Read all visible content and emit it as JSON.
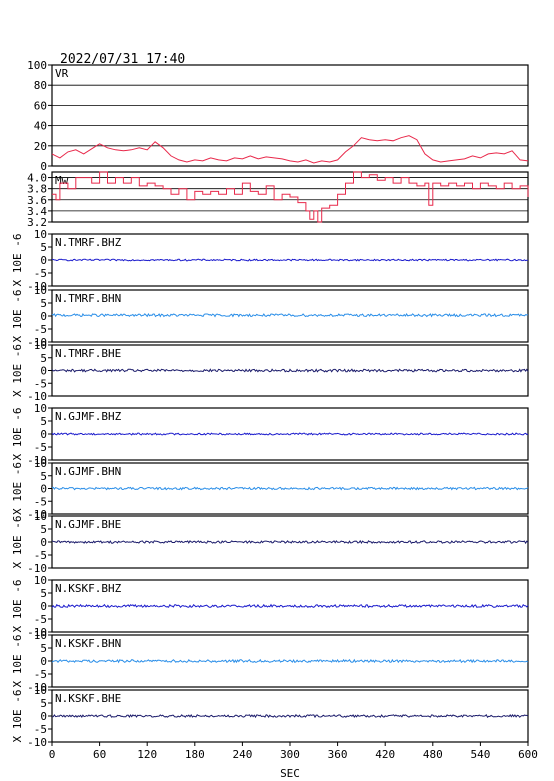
{
  "header": {
    "timestamp": "2022/07/31  17:40"
  },
  "chart_data": {
    "type": "line",
    "x_axis": {
      "xlabel": "SEC",
      "xlim": [
        0,
        600
      ],
      "ticks": [
        0,
        60,
        120,
        180,
        240,
        300,
        360,
        420,
        480,
        540,
        600
      ]
    },
    "shared_ylabel": "X 10E -6",
    "panels": [
      {
        "id": "vr",
        "label": "VR",
        "color": "#e8284a",
        "ylim": [
          0,
          100
        ],
        "yticks": [
          0,
          20,
          40,
          60,
          80,
          100
        ],
        "ytick_labels": [
          "0",
          "20",
          "40",
          "60",
          "80",
          "100"
        ],
        "grid": true,
        "ylabel": "",
        "points": [
          [
            0,
            12
          ],
          [
            10,
            8
          ],
          [
            20,
            14
          ],
          [
            30,
            16
          ],
          [
            40,
            12
          ],
          [
            50,
            17
          ],
          [
            60,
            22
          ],
          [
            70,
            18
          ],
          [
            80,
            16
          ],
          [
            90,
            15
          ],
          [
            100,
            16
          ],
          [
            110,
            18
          ],
          [
            120,
            16
          ],
          [
            130,
            24
          ],
          [
            140,
            18
          ],
          [
            150,
            10
          ],
          [
            160,
            6
          ],
          [
            170,
            4
          ],
          [
            180,
            6
          ],
          [
            190,
            5
          ],
          [
            200,
            8
          ],
          [
            210,
            6
          ],
          [
            220,
            5
          ],
          [
            230,
            8
          ],
          [
            240,
            7
          ],
          [
            250,
            10
          ],
          [
            260,
            7
          ],
          [
            270,
            9
          ],
          [
            280,
            8
          ],
          [
            290,
            7
          ],
          [
            300,
            5
          ],
          [
            310,
            4
          ],
          [
            320,
            6
          ],
          [
            330,
            3
          ],
          [
            340,
            5
          ],
          [
            350,
            4
          ],
          [
            360,
            6
          ],
          [
            370,
            14
          ],
          [
            380,
            20
          ],
          [
            390,
            28
          ],
          [
            400,
            26
          ],
          [
            410,
            25
          ],
          [
            420,
            26
          ],
          [
            430,
            25
          ],
          [
            440,
            28
          ],
          [
            450,
            30
          ],
          [
            460,
            26
          ],
          [
            470,
            12
          ],
          [
            480,
            6
          ],
          [
            490,
            4
          ],
          [
            500,
            5
          ],
          [
            510,
            6
          ],
          [
            520,
            7
          ],
          [
            530,
            10
          ],
          [
            540,
            8
          ],
          [
            550,
            12
          ],
          [
            560,
            13
          ],
          [
            570,
            12
          ],
          [
            580,
            15
          ],
          [
            590,
            6
          ],
          [
            600,
            5
          ]
        ]
      },
      {
        "id": "mw",
        "label": "Mw",
        "color": "#e8284a",
        "ylim": [
          3.2,
          4.1
        ],
        "yticks": [
          3.2,
          3.4,
          3.6,
          3.8,
          4.0
        ],
        "ytick_labels": [
          "3.2",
          "3.4",
          "3.6",
          "3.8",
          "4.0"
        ],
        "grid": true,
        "ylabel": "",
        "points": [
          [
            0,
            3.7
          ],
          [
            5,
            3.6
          ],
          [
            10,
            3.9
          ],
          [
            20,
            3.8
          ],
          [
            30,
            4.0
          ],
          [
            40,
            4.0
          ],
          [
            50,
            3.9
          ],
          [
            60,
            4.1
          ],
          [
            70,
            3.9
          ],
          [
            80,
            4.0
          ],
          [
            90,
            3.9
          ],
          [
            100,
            4.0
          ],
          [
            110,
            3.85
          ],
          [
            120,
            3.9
          ],
          [
            130,
            3.85
          ],
          [
            140,
            3.8
          ],
          [
            150,
            3.7
          ],
          [
            160,
            3.8
          ],
          [
            170,
            3.6
          ],
          [
            180,
            3.75
          ],
          [
            190,
            3.7
          ],
          [
            200,
            3.75
          ],
          [
            210,
            3.7
          ],
          [
            220,
            3.8
          ],
          [
            230,
            3.7
          ],
          [
            240,
            3.9
          ],
          [
            250,
            3.75
          ],
          [
            260,
            3.7
          ],
          [
            270,
            3.85
          ],
          [
            280,
            3.6
          ],
          [
            290,
            3.7
          ],
          [
            300,
            3.65
          ],
          [
            310,
            3.55
          ],
          [
            320,
            3.4
          ],
          [
            325,
            3.25
          ],
          [
            330,
            3.4
          ],
          [
            335,
            3.2
          ],
          [
            340,
            3.45
          ],
          [
            350,
            3.5
          ],
          [
            360,
            3.7
          ],
          [
            370,
            3.9
          ],
          [
            380,
            4.1
          ],
          [
            390,
            4.0
          ],
          [
            400,
            4.05
          ],
          [
            410,
            3.95
          ],
          [
            420,
            4.0
          ],
          [
            430,
            3.9
          ],
          [
            440,
            4.0
          ],
          [
            450,
            3.9
          ],
          [
            460,
            3.85
          ],
          [
            470,
            3.9
          ],
          [
            475,
            3.5
          ],
          [
            480,
            3.9
          ],
          [
            490,
            3.85
          ],
          [
            500,
            3.9
          ],
          [
            510,
            3.85
          ],
          [
            520,
            3.9
          ],
          [
            530,
            3.8
          ],
          [
            540,
            3.9
          ],
          [
            550,
            3.85
          ],
          [
            560,
            3.8
          ],
          [
            570,
            3.9
          ],
          [
            580,
            3.8
          ],
          [
            590,
            3.85
          ],
          [
            600,
            3.65
          ]
        ]
      },
      {
        "id": "tmrf-bhz",
        "label": "N.TMRF.BHZ",
        "color": "#1a1acc",
        "amplitude": 0.3,
        "offset": 0,
        "ylim": [
          -10,
          10
        ],
        "yticks": [
          -10,
          -5,
          0,
          5,
          10
        ],
        "ytick_labels": [
          "-10",
          "-5",
          "0",
          "5",
          "10"
        ],
        "ylabel": "X 10E -6"
      },
      {
        "id": "tmrf-bhn",
        "label": "N.TMRF.BHN",
        "color": "#2a8ee8",
        "amplitude": 0.5,
        "offset": 0.3,
        "ylim": [
          -10,
          10
        ],
        "yticks": [
          -10,
          -5,
          0,
          5,
          10
        ],
        "ytick_labels": [
          "-10",
          "-5",
          "0",
          "5",
          "10"
        ],
        "ylabel": "X 10E -6"
      },
      {
        "id": "tmrf-bhe",
        "label": "N.TMRF.BHE",
        "color": "#1a1a6a",
        "amplitude": 0.5,
        "offset": 0,
        "ylim": [
          -10,
          10
        ],
        "yticks": [
          -10,
          -5,
          0,
          5,
          10
        ],
        "ytick_labels": [
          "-10",
          "-5",
          "0",
          "5",
          "10"
        ],
        "ylabel": "X 10E -6"
      },
      {
        "id": "gjmf-bhz",
        "label": "N.GJMF.BHZ",
        "color": "#1a1acc",
        "amplitude": 0.35,
        "offset": 0,
        "ylim": [
          -10,
          10
        ],
        "yticks": [
          -10,
          -5,
          0,
          5,
          10
        ],
        "ytick_labels": [
          "-10",
          "-5",
          "0",
          "5",
          "10"
        ],
        "ylabel": "X 10E -6"
      },
      {
        "id": "gjmf-bhn",
        "label": "N.GJMF.BHN",
        "color": "#2a8ee8",
        "amplitude": 0.45,
        "offset": 0,
        "ylim": [
          -10,
          10
        ],
        "yticks": [
          -10,
          -5,
          0,
          5,
          10
        ],
        "ytick_labels": [
          "-10",
          "-5",
          "0",
          "5",
          "10"
        ],
        "ylabel": "X 10E -6"
      },
      {
        "id": "gjmf-bhe",
        "label": "N.GJMF.BHE",
        "color": "#1a1a6a",
        "amplitude": 0.45,
        "offset": 0,
        "ylim": [
          -10,
          10
        ],
        "yticks": [
          -10,
          -5,
          0,
          5,
          10
        ],
        "ytick_labels": [
          "-10",
          "-5",
          "0",
          "5",
          "10"
        ],
        "ylabel": "X 10E -6"
      },
      {
        "id": "kskf-bhz",
        "label": "N.KSKF.BHZ",
        "color": "#1a1acc",
        "amplitude": 0.5,
        "offset": 0,
        "ylim": [
          -10,
          10
        ],
        "yticks": [
          -10,
          -5,
          0,
          5,
          10
        ],
        "ytick_labels": [
          "-10",
          "-5",
          "0",
          "5",
          "10"
        ],
        "ylabel": "X 10E -6"
      },
      {
        "id": "kskf-bhn",
        "label": "N.KSKF.BHN",
        "color": "#2a8ee8",
        "amplitude": 0.5,
        "offset": 0,
        "ylim": [
          -10,
          10
        ],
        "yticks": [
          -10,
          -5,
          0,
          5,
          10
        ],
        "ytick_labels": [
          "-10",
          "-5",
          "0",
          "5",
          "10"
        ],
        "ylabel": "X 10E -6"
      },
      {
        "id": "kskf-bhe",
        "label": "N.KSKF.BHE",
        "color": "#1a1a6a",
        "amplitude": 0.45,
        "offset": 0,
        "ylim": [
          -10,
          10
        ],
        "yticks": [
          -10,
          -5,
          0,
          5,
          10
        ],
        "ytick_labels": [
          "-10",
          "-5",
          "0",
          "5",
          "10"
        ],
        "ylabel": "X 10E -6"
      }
    ]
  }
}
